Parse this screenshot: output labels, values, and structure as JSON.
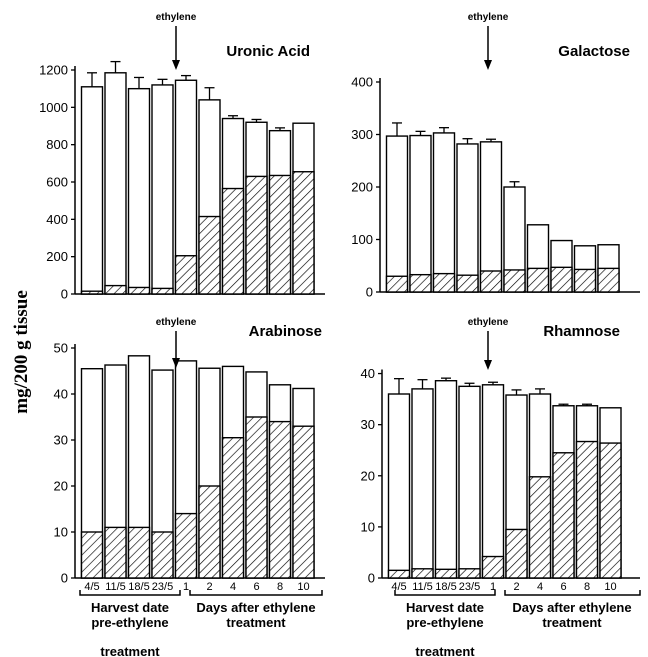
{
  "y_axis_label": "mg/200 g tissue",
  "arrow_label": "ethylene",
  "group_labels": {
    "pre": [
      "Harvest date",
      "pre-ethylene",
      "treatment"
    ],
    "post": [
      "Days after ethylene",
      "treatment"
    ]
  },
  "colors": {
    "bar_fill": "#ffffff",
    "stroke": "#000000",
    "hatch": "#000000"
  },
  "chart_data": [
    {
      "type": "bar",
      "title": "Uronic Acid",
      "categories": [
        "4/5",
        "11/5",
        "18/5",
        "23/5",
        "1",
        "2",
        "4",
        "6",
        "8",
        "10"
      ],
      "stacked": true,
      "series": [
        {
          "values": [
            15,
            45,
            35,
            30,
            205,
            415,
            565,
            630,
            635,
            655
          ]
        },
        {
          "values": [
            1095,
            1140,
            1065,
            1090,
            940,
            625,
            375,
            290,
            240,
            260
          ]
        }
      ],
      "totals": [
        1110,
        1185,
        1100,
        1120,
        1145,
        1040,
        940,
        920,
        875,
        915
      ],
      "errors": [
        75,
        60,
        60,
        30,
        25,
        65,
        15,
        15,
        15,
        0
      ],
      "ylim": [
        0,
        1200
      ],
      "yticks": [
        0,
        200,
        400,
        600,
        800,
        1000,
        1200
      ],
      "ethylene_arrow": true,
      "show_xticklabels": false
    },
    {
      "type": "bar",
      "title": "Galactose",
      "categories": [
        "4/5",
        "11/5",
        "18/5",
        "23/5",
        "1",
        "2",
        "4",
        "6",
        "8",
        "10"
      ],
      "stacked": true,
      "series": [
        {
          "values": [
            30,
            33,
            35,
            32,
            40,
            42,
            45,
            47,
            43,
            45
          ]
        },
        {
          "values": [
            267,
            265,
            268,
            250,
            246,
            158,
            83,
            51,
            45,
            45
          ]
        }
      ],
      "totals": [
        297,
        298,
        303,
        282,
        286,
        200,
        128,
        98,
        88,
        90
      ],
      "errors": [
        25,
        8,
        10,
        10,
        5,
        10,
        0,
        0,
        0,
        0
      ],
      "ylim": [
        0,
        400
      ],
      "yticks": [
        0,
        100,
        200,
        300,
        400
      ],
      "ethylene_arrow": true,
      "show_xticklabels": false
    },
    {
      "type": "bar",
      "title": "Arabinose",
      "categories": [
        "4/5",
        "11/5",
        "18/5",
        "23/5",
        "1",
        "2",
        "4",
        "6",
        "8",
        "10"
      ],
      "stacked": true,
      "series": [
        {
          "values": [
            10,
            11,
            11,
            10,
            14,
            20,
            30.5,
            35,
            34,
            33
          ]
        },
        {
          "values": [
            35.5,
            35.3,
            37.3,
            35.2,
            33.2,
            25.6,
            15.5,
            9.8,
            8,
            8.2
          ]
        }
      ],
      "totals": [
        45.5,
        46.3,
        48.3,
        45.2,
        47.2,
        45.6,
        46,
        44.8,
        42,
        41.2
      ],
      "errors": [
        0,
        0,
        0,
        0,
        0,
        0,
        0,
        0,
        0,
        0
      ],
      "ylim": [
        0,
        50
      ],
      "yticks": [
        0,
        10,
        20,
        30,
        40,
        50
      ],
      "ethylene_arrow": true,
      "show_xticklabels": true
    },
    {
      "type": "bar",
      "title": "Rhamnose",
      "categories": [
        "4/5",
        "11/5",
        "18/5",
        "23/5",
        "1",
        "2",
        "4",
        "6",
        "8",
        "10"
      ],
      "stacked": true,
      "series": [
        {
          "values": [
            1.5,
            1.8,
            1.7,
            1.8,
            4.2,
            9.5,
            19.8,
            24.5,
            26.7,
            26.4
          ]
        },
        {
          "values": [
            34.5,
            35.2,
            36.9,
            35.7,
            33.6,
            26.3,
            16.2,
            9.2,
            7,
            6.9
          ]
        }
      ],
      "totals": [
        36,
        37,
        38.6,
        37.5,
        37.8,
        35.8,
        36,
        33.7,
        33.7,
        33.3
      ],
      "errors": [
        3,
        1.8,
        0.5,
        0.6,
        0.5,
        1,
        1,
        0.3,
        0.3,
        0
      ],
      "ylim": [
        0,
        45
      ],
      "yticks": [
        0,
        10,
        20,
        30,
        40
      ],
      "ethylene_arrow": true,
      "show_xticklabels": true
    }
  ]
}
